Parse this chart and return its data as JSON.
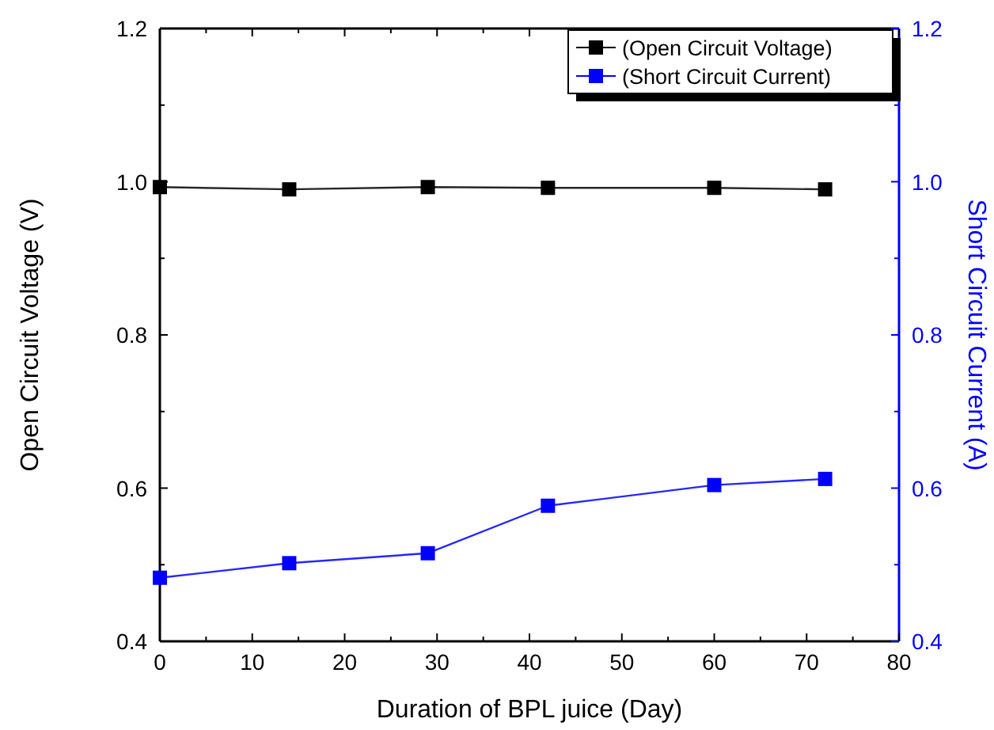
{
  "chart_data": {
    "type": "line",
    "xlabel": "Duration of BPL juice (Day)",
    "ylabel": "Open Circuit Voltage (V)",
    "y2label": "Short Circuit Current (A)",
    "x": [
      0,
      14,
      29,
      42,
      60,
      72
    ],
    "series": [
      {
        "name": "(Open Circuit Voltage)",
        "color": "#000000",
        "values": [
          0.993,
          0.99,
          0.993,
          0.992,
          0.992,
          0.99
        ]
      },
      {
        "name": "(Short Circuit Current)",
        "color": "#0000ff",
        "axis": "y2",
        "values": [
          0.483,
          0.502,
          0.515,
          0.577,
          0.604,
          0.612
        ]
      }
    ],
    "xlim": [
      0,
      80
    ],
    "xticks": [
      0,
      {
        "value": 5,
        "label": null
      },
      10,
      {
        "value": 15,
        "label": null
      },
      20,
      {
        "value": 25,
        "label": null
      },
      30,
      {
        "value": 35,
        "label": null
      },
      40,
      {
        "value": 45,
        "label": null
      },
      50,
      {
        "value": 55,
        "label": null
      },
      60,
      {
        "value": 65,
        "label": null
      },
      70,
      {
        "value": 75,
        "label": null
      },
      80
    ],
    "ylim": [
      0.4,
      1.2
    ],
    "yticks": [
      {
        "value": 0.4,
        "label": "0.4"
      },
      {
        "value": 0.5,
        "label": null
      },
      {
        "value": 0.6,
        "label": "0.6"
      },
      {
        "value": 0.7,
        "label": null
      },
      {
        "value": 0.8,
        "label": "0.8"
      },
      {
        "value": 0.9,
        "label": null
      },
      {
        "value": 1.0,
        "label": "1.0"
      },
      {
        "value": 1.1,
        "label": null
      },
      {
        "value": 1.2,
        "label": "1.2"
      }
    ],
    "y2lim": [
      0.4,
      1.2
    ],
    "y2ticks": [
      {
        "value": 0.4,
        "label": "0.4"
      },
      {
        "value": 0.5,
        "label": null
      },
      {
        "value": 0.6,
        "label": "0.6"
      },
      {
        "value": 0.7,
        "label": null
      },
      {
        "value": 0.8,
        "label": "0.8"
      },
      {
        "value": 0.9,
        "label": null
      },
      {
        "value": 1.0,
        "label": "1.0"
      },
      {
        "value": 1.1,
        "label": null
      },
      {
        "value": 1.2,
        "label": "1.2"
      }
    ],
    "marker": "square",
    "line_style": "solid",
    "legend": "top right",
    "grid": false
  }
}
